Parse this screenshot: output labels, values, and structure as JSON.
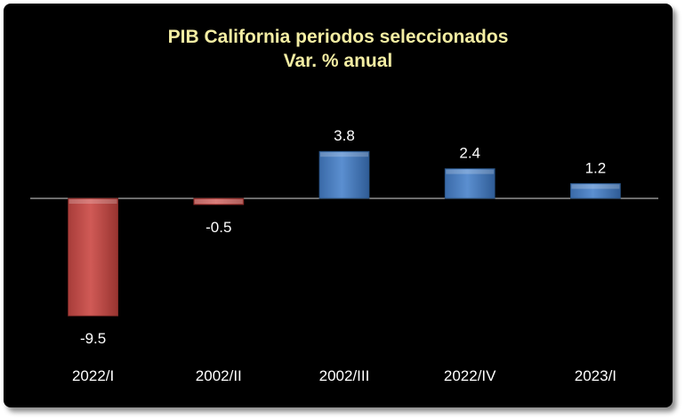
{
  "chart_data": {
    "type": "bar",
    "title": "PIB California periodos seleccionados",
    "subtitle": "Var. % anual",
    "categories": [
      "2022/I",
      "2002/II",
      "2002/III",
      "2022/IV",
      "2023/I"
    ],
    "values": [
      -9.5,
      -0.5,
      3.8,
      2.4,
      1.2
    ],
    "value_labels": [
      "-9.5",
      "-0.5",
      "3.8",
      "2.4",
      "1.2"
    ],
    "ylim": [
      -10,
      4
    ],
    "grid": false,
    "legend": "none",
    "colors": {
      "positive": "#4f81bd",
      "negative": "#c0504d",
      "background": "#000000",
      "title": "#f3eda3",
      "labels": "#ffffff",
      "axis": "#d9d9d9"
    }
  }
}
